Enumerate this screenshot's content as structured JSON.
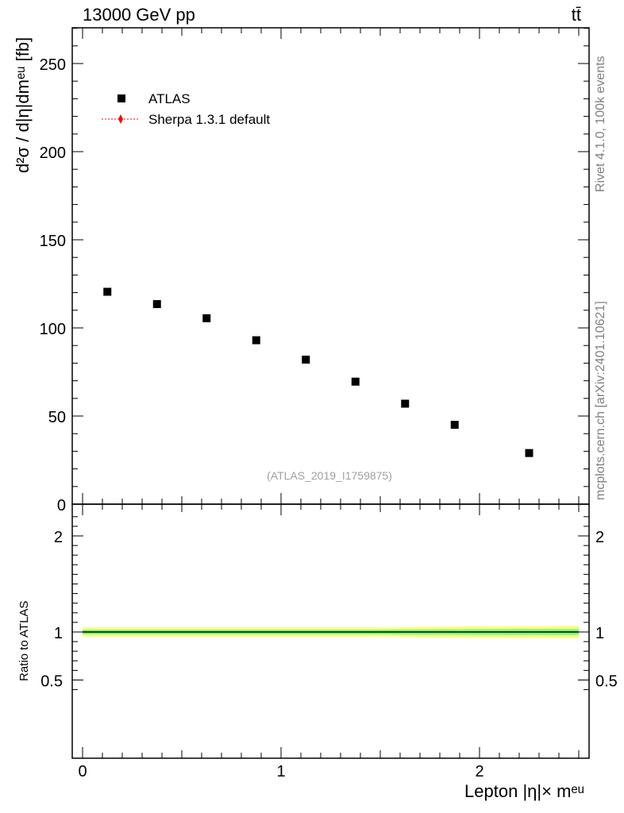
{
  "header": {
    "energy_label": "13000 GeV pp",
    "process_label": "tt̄"
  },
  "side_labels": {
    "rivet": "Rivet 4.1.0,  100k events",
    "mcplots": "mcplots.cern.ch [arXiv:2401.10621]"
  },
  "axes": {
    "ylabel_main": "d²σ / d|η|dmᵉᵘ [fb]",
    "ylabel_ratio": "Ratio to ATLAS",
    "xlabel": "Lepton |η|× mᵉᵘ"
  },
  "watermark": "(ATLAS_2019_I1759875)",
  "legend": {
    "data_label": "ATLAS",
    "mc_label": "Sherpa 1.3.1 default"
  },
  "colors": {
    "data": "#000000",
    "mc": "#ff0000",
    "band_outer": "#ffff80",
    "band_inner": "#80ff80"
  },
  "chart_data": [
    {
      "type": "scatter",
      "title": "",
      "xlim": [
        0,
        2.5
      ],
      "ylim": [
        0,
        270
      ],
      "y_ticks": [
        0,
        50,
        100,
        150,
        200,
        250
      ],
      "series": [
        {
          "name": "ATLAS",
          "x": [
            0.125,
            0.375,
            0.625,
            0.875,
            1.125,
            1.375,
            1.625,
            1.875,
            2.25
          ],
          "values": [
            120.5,
            113.5,
            105.5,
            93,
            82,
            69.5,
            57,
            45,
            29
          ]
        }
      ]
    },
    {
      "type": "line",
      "title": "Ratio to ATLAS",
      "xlim": [
        0,
        2.5
      ],
      "ylim": [
        0.35,
        2.25
      ],
      "y_ticks": [
        0.5,
        1,
        2
      ],
      "x_ticks": [
        0,
        1,
        2
      ],
      "reference_line": 1,
      "band": {
        "x": [
          0,
          0.5,
          1.0,
          1.5,
          1.75,
          2.0,
          2.5
        ],
        "outer": [
          0.05,
          0.05,
          0.05,
          0.05,
          0.055,
          0.06,
          0.065
        ],
        "inner": [
          0.025,
          0.025,
          0.025,
          0.025,
          0.028,
          0.03,
          0.032
        ]
      }
    }
  ]
}
